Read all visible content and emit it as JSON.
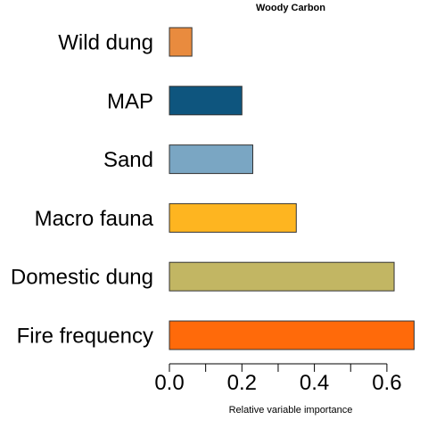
{
  "chart_data": {
    "type": "bar",
    "orientation": "horizontal",
    "title": "Woody Carbon",
    "xlabel": "Relative variable importance",
    "ylabel": "",
    "categories": [
      "Fire frequency",
      "Domestic dung",
      "Macro fauna",
      "Sand",
      "MAP",
      "Wild dung"
    ],
    "values": [
      0.675,
      0.62,
      0.35,
      0.23,
      0.2,
      0.062
    ],
    "colors": [
      "#ff6a0a",
      "#c2b663",
      "#feb520",
      "#7aa6c3",
      "#0e557e",
      "#e98b3e"
    ],
    "xlim": [
      0,
      0.7
    ],
    "major_ticks": [
      0.0,
      0.2,
      0.4,
      0.6
    ],
    "minor_ticks": [
      0.1,
      0.3,
      0.5
    ],
    "tick_labels": [
      "0.0",
      "0.2",
      "0.4",
      "0.6"
    ],
    "grid": false,
    "legend": "none"
  }
}
